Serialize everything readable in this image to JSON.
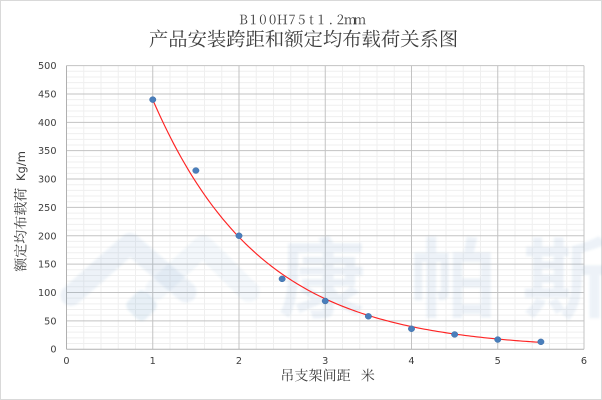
{
  "chart": {
    "title_line1": "B100H75t1.2mm",
    "title_line2": "产品安装跨距和额定均布载荷关系图",
    "x_axis_title": "吊支架间距 米",
    "y_axis_title": "额定均布载荷 Kg/m",
    "y_axis_unit_latin": "Kg/m",
    "watermark_text": "康帕斯"
  },
  "chart_data": {
    "type": "scatter",
    "title": "B100H75t1.2mm 产品安装跨距和额定均布载荷关系图",
    "xlabel": "吊支架间距 米",
    "ylabel": "额定均布载荷 Kg/m",
    "x": [
      1,
      1.5,
      2,
      2.5,
      3,
      3.5,
      4,
      4.5,
      5,
      5.5
    ],
    "y": [
      440,
      315,
      200,
      124,
      85,
      58,
      36,
      26,
      17,
      13
    ],
    "trendline": {
      "type": "exponential",
      "formula": "y = 978.9*exp(-0.8*x)",
      "a": 978.9,
      "b": -0.8,
      "x_range": [
        1,
        5.5
      ],
      "color": "#fe2323"
    },
    "xlim": [
      0,
      6
    ],
    "ylim": [
      0,
      500
    ],
    "x_ticks": [
      0,
      1,
      2,
      3,
      4,
      5,
      6
    ],
    "y_ticks": [
      0,
      50,
      100,
      150,
      200,
      250,
      300,
      350,
      400,
      450,
      500
    ],
    "x_minor_step": 0.2,
    "y_minor_step": 10,
    "grid": true,
    "legend": false,
    "marker_color": "#4a7ebb"
  },
  "colors": {
    "background": "#ffffff",
    "chart_border": "#d9d9d9",
    "grid_minor": "#efefef",
    "grid_major": "#c3c3c3",
    "axis_line": "#b0b0b0",
    "text": "#3d3d3d",
    "tick_text": "#3d3d3d",
    "watermark_blue": "#4f81bd"
  }
}
